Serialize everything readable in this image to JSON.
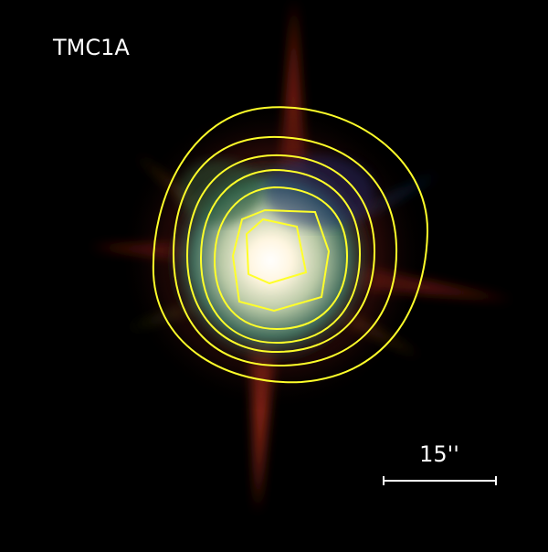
{
  "image": {
    "label": "TMC1A",
    "scale_bar": {
      "label": "15''"
    }
  }
}
